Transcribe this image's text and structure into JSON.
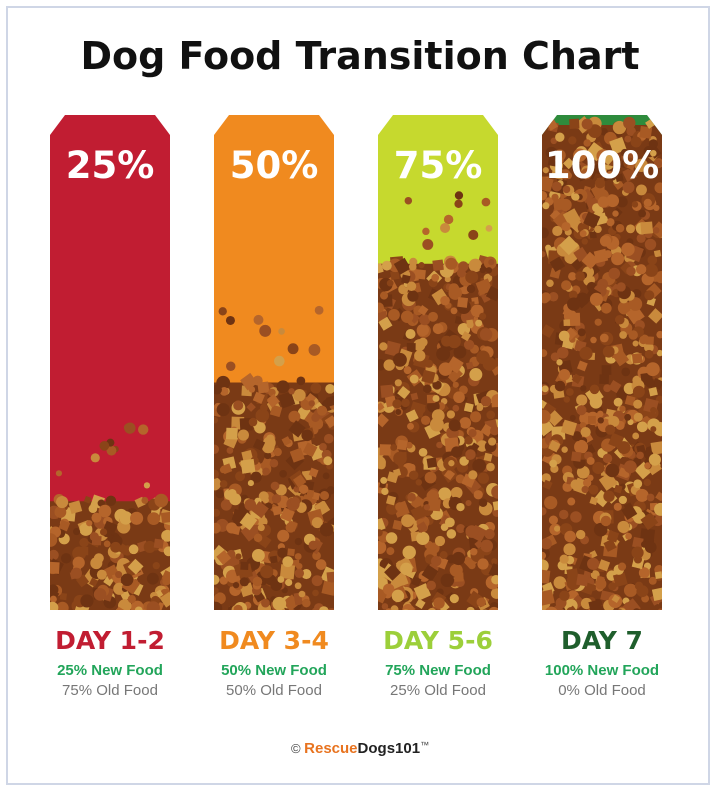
{
  "title": "Dog Food Transition Chart",
  "chart_data": {
    "type": "bar",
    "title": "Dog Food Transition Chart",
    "categories": [
      "DAY 1-2",
      "DAY 3-4",
      "DAY 5-6",
      "DAY 7"
    ],
    "series": [
      {
        "name": "New Food",
        "values": [
          25,
          50,
          75,
          100
        ]
      },
      {
        "name": "Old Food",
        "values": [
          75,
          50,
          25,
          0
        ]
      }
    ],
    "value_labels": [
      "25%",
      "50%",
      "75%",
      "100%"
    ],
    "new_food_labels": [
      "25% New Food",
      "50% New Food",
      "75% New Food",
      "100% New Food"
    ],
    "old_food_labels": [
      "75% Old Food",
      "50% Old Food",
      "25% Old Food",
      "0% Old Food"
    ],
    "ylim": [
      0,
      100
    ],
    "colors": [
      "#c11d32",
      "#f08a1f",
      "#c6d92e",
      "#2e8b3c"
    ],
    "day_label_colors": [
      "#c11d32",
      "#f08a1f",
      "#9ccf3a",
      "#1f5e2c"
    ],
    "kibble_color": "#9b4f22"
  },
  "footer": {
    "copyright": "©",
    "brand_part1": "Rescue",
    "brand_part2": "Dogs101",
    "trademark": "™"
  }
}
